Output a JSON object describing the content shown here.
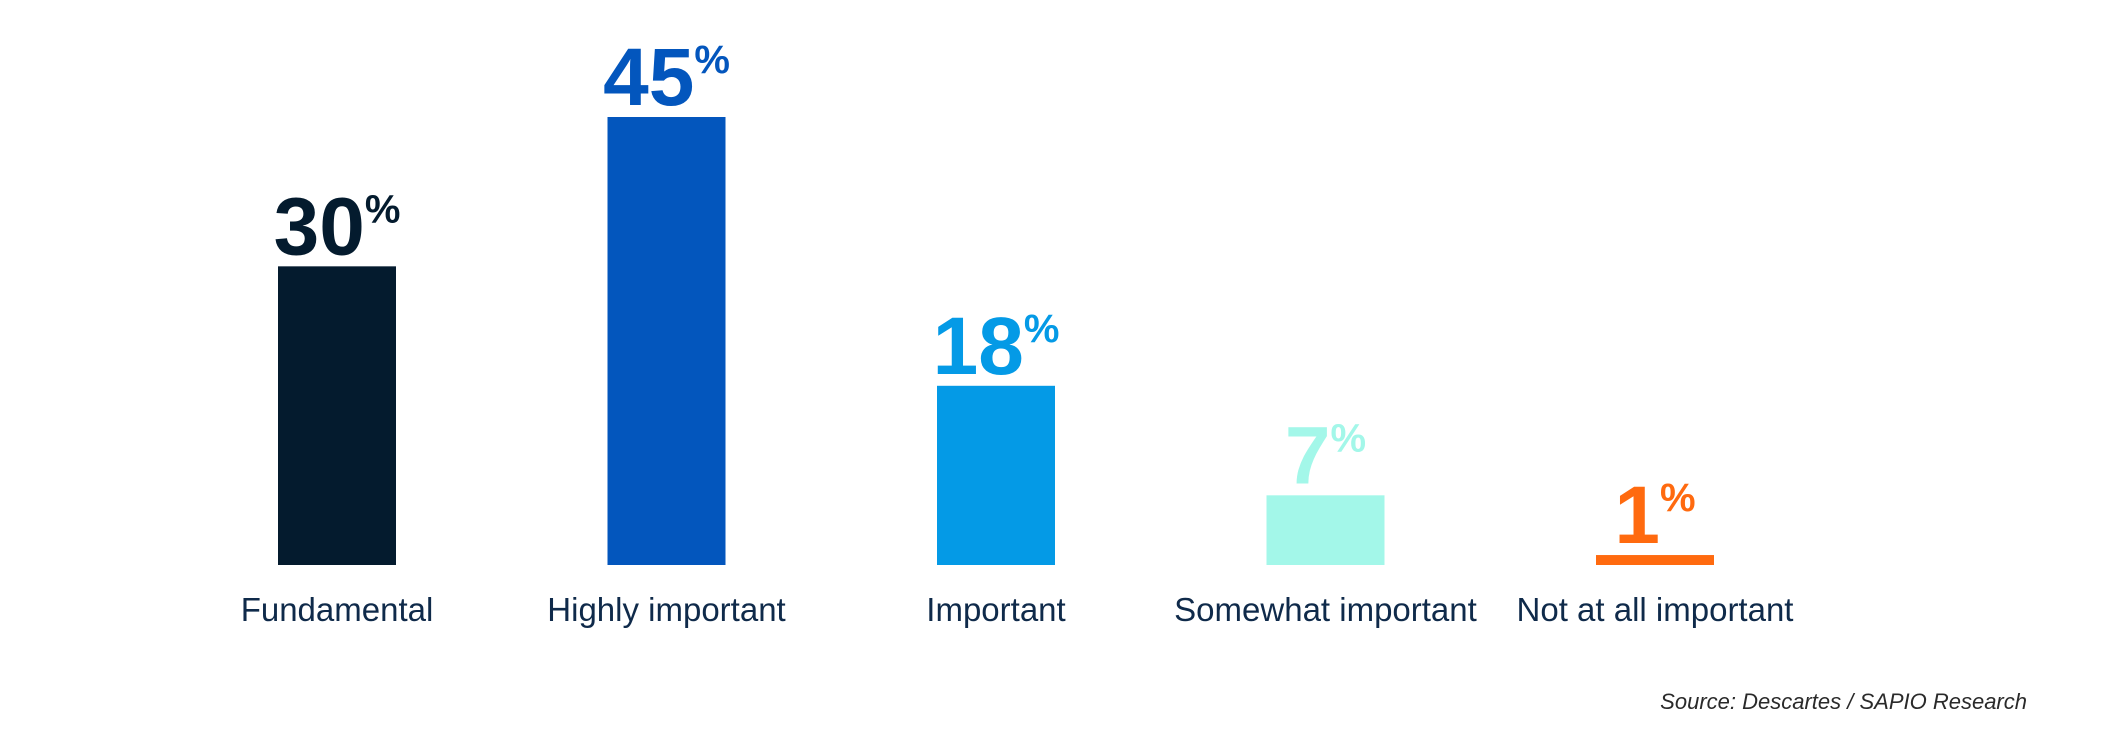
{
  "chart_data": {
    "type": "bar",
    "categories": [
      "Fundamental",
      "Highly important",
      "Important",
      "Somewhat important",
      "Not at all important"
    ],
    "values": [
      30,
      45,
      18,
      7,
      1
    ],
    "value_labels": [
      "30",
      "45",
      "18",
      "7",
      "1"
    ],
    "unit": "%",
    "colors": [
      "#041b2e",
      "#0356bd",
      "#049ae6",
      "#a3f7e9",
      "#ff6a0f"
    ],
    "label_color": "#0f2a4a",
    "title": "",
    "xlabel": "",
    "ylabel": "",
    "ylim": [
      0,
      45
    ],
    "grid": false,
    "legend": "none"
  },
  "source": "Source: Descartes / SAPIO Research"
}
